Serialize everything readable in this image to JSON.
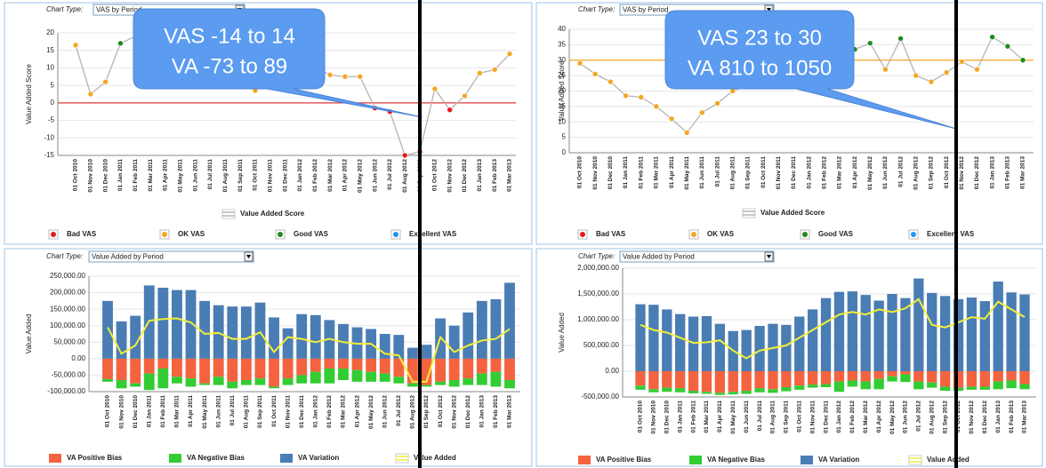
{
  "chart_data": [
    {
      "type": "line",
      "chart_type_label": "Chart Type:",
      "chart_type": "VAS by Period",
      "y_label": "Value Added Score",
      "annotation": [
        "VAS   -14 to 14",
        "VA -73 to 89"
      ],
      "categories": [
        "01 Oct 2010",
        "01 Nov 2010",
        "01 Dec 2010",
        "01 Jan 2011",
        "01 Feb 2011",
        "01 Mar 2011",
        "01 Apr 2011",
        "01 May 2011",
        "01 Jun 2011",
        "01 Jul 2011",
        "01 Aug 2011",
        "01 Sep 2011",
        "01 Oct 2011",
        "01 Nov 2011",
        "01 Dec 2011",
        "01 Jan 2012",
        "01 Feb 2012",
        "01 Mar 2012",
        "01 Apr 2012",
        "01 May 2012",
        "01 Jun 2012",
        "01 Jul 2012",
        "01 Aug 2012",
        "01 Sep 2012",
        "01 Oct 2012",
        "01 Nov 2012",
        "01 Dec 2012",
        "01 Jan 2013",
        "01 Feb 2013",
        "01 Mar 2013"
      ],
      "ylim": [
        -15,
        20
      ],
      "yticks": [
        -15,
        -10,
        -5,
        0,
        5,
        10,
        15,
        20
      ],
      "reference_line": {
        "value": 0,
        "color": "#e03a3a"
      },
      "series": [
        {
          "name": "Value Added Score",
          "type": "line",
          "color": "#b4b4b4",
          "values": [
            16.5,
            2.5,
            6,
            17,
            19,
            20,
            18,
            12.5,
            13,
            10,
            10,
            13,
            3.5,
            11,
            10,
            8,
            10,
            8,
            7.5,
            7.5,
            -1.5,
            -2.5,
            -15,
            -14,
            4,
            -2,
            2,
            8.5,
            9.5,
            14
          ]
        },
        {
          "name": "Bad VAS",
          "type": "points",
          "color": "#e41a1c",
          "values": [
            null,
            null,
            null,
            null,
            null,
            null,
            null,
            null,
            null,
            null,
            null,
            null,
            null,
            null,
            null,
            null,
            null,
            null,
            null,
            null,
            -1.5,
            -2.5,
            -15,
            -14,
            null,
            -2,
            null,
            null,
            null,
            null
          ]
        },
        {
          "name": "OK VAS",
          "type": "points",
          "color": "#f5a623",
          "values": [
            16.5,
            2.5,
            6,
            null,
            null,
            null,
            null,
            12.5,
            13,
            10,
            10,
            13,
            3.5,
            11,
            10,
            8,
            10,
            8,
            7.5,
            7.5,
            null,
            null,
            null,
            null,
            4,
            null,
            2,
            8.5,
            9.5,
            14
          ]
        },
        {
          "name": "Good VAS",
          "type": "points",
          "color": "#1e8c1e",
          "values": [
            null,
            null,
            null,
            17,
            19,
            20,
            18,
            null,
            null,
            null,
            null,
            null,
            null,
            null,
            null,
            null,
            null,
            null,
            null,
            null,
            null,
            null,
            null,
            null,
            null,
            null,
            null,
            null,
            null,
            null
          ]
        },
        {
          "name": "Excellent VAS",
          "type": "points",
          "color": "#2196f3",
          "values": [
            null,
            null,
            null,
            null,
            null,
            null,
            null,
            null,
            null,
            null,
            null,
            null,
            null,
            null,
            null,
            null,
            null,
            null,
            null,
            null,
            null,
            null,
            null,
            null,
            null,
            null,
            null,
            null,
            null,
            null
          ]
        }
      ]
    },
    {
      "type": "line",
      "chart_type_label": "Chart Type:",
      "chart_type": "VAS by Period",
      "y_label": "Value Added Score",
      "annotation": [
        "VAS   23 to 30",
        "VA 810 to 1050"
      ],
      "categories": [
        "01 Oct 2010",
        "01 Nov 2010",
        "01 Dec 2010",
        "01 Jan 2011",
        "01 Feb 2011",
        "01 Mar 2011",
        "01 Apr 2011",
        "01 May 2011",
        "01 Jun 2011",
        "01 Jul 2011",
        "01 Aug 2011",
        "01 Sep 2011",
        "01 Oct 2011",
        "01 Nov 2011",
        "01 Dec 2011",
        "01 Jan 2012",
        "01 Feb 2012",
        "01 Mar 2012",
        "01 Apr 2012",
        "01 May 2012",
        "01 Jun 2012",
        "01 Jul 2012",
        "01 Aug 2012",
        "01 Sep 2012",
        "01 Oct 2012",
        "01 Nov 2012",
        "01 Dec 2012",
        "01 Jan 2013",
        "01 Feb 2013",
        "01 Mar 2013"
      ],
      "ylim": [
        0,
        40
      ],
      "yticks": [
        0,
        5,
        10,
        15,
        20,
        25,
        30,
        35,
        40
      ],
      "reference_line": {
        "value": 30,
        "color": "#f5a623"
      },
      "series": [
        {
          "name": "Value Added Score",
          "type": "line",
          "color": "#b4b4b4",
          "values": [
            29,
            25.5,
            23,
            18.5,
            18,
            15,
            11,
            6.5,
            13,
            16,
            20,
            22,
            24,
            26,
            28,
            29,
            29.5,
            31,
            33.5,
            35.5,
            27,
            37,
            25,
            23,
            26,
            29.5,
            27,
            37.5,
            34.5,
            30
          ]
        },
        {
          "name": "Bad VAS",
          "type": "points",
          "color": "#e41a1c",
          "values": [
            null,
            null,
            null,
            null,
            null,
            null,
            null,
            null,
            null,
            null,
            null,
            null,
            null,
            null,
            null,
            null,
            null,
            null,
            null,
            null,
            null,
            null,
            null,
            null,
            null,
            null,
            null,
            null,
            null,
            null
          ]
        },
        {
          "name": "OK VAS",
          "type": "points",
          "color": "#f5a623",
          "values": [
            29,
            25.5,
            23,
            18.5,
            18,
            15,
            11,
            6.5,
            13,
            16,
            20,
            22,
            24,
            26,
            28,
            29,
            29.5,
            null,
            null,
            null,
            27,
            null,
            25,
            23,
            26,
            29.5,
            27,
            null,
            null,
            null
          ]
        },
        {
          "name": "Good VAS",
          "type": "points",
          "color": "#1e8c1e",
          "values": [
            null,
            null,
            null,
            null,
            null,
            null,
            null,
            null,
            null,
            null,
            null,
            null,
            null,
            null,
            null,
            null,
            null,
            31,
            33.5,
            35.5,
            null,
            37,
            null,
            null,
            null,
            null,
            null,
            37.5,
            34.5,
            30
          ]
        },
        {
          "name": "Excellent VAS",
          "type": "points",
          "color": "#2196f3",
          "values": [
            null,
            null,
            null,
            null,
            null,
            null,
            null,
            null,
            null,
            null,
            null,
            null,
            null,
            null,
            null,
            null,
            null,
            null,
            null,
            null,
            null,
            null,
            null,
            null,
            null,
            null,
            null,
            null,
            null,
            null
          ]
        }
      ]
    },
    {
      "type": "bar",
      "chart_type_label": "Chart Type:",
      "chart_type": "Value Added by Period",
      "y_label": "Value Added",
      "categories": [
        "01 Oct 2010",
        "01 Nov 2010",
        "01 Dec 2010",
        "01 Jan 2011",
        "01 Feb 2011",
        "01 Mar 2011",
        "01 Apr 2011",
        "01 May 2011",
        "01 Jun 2011",
        "01 Jul 2011",
        "01 Aug 2011",
        "01 Sep 2011",
        "01 Oct 2011",
        "01 Nov 2011",
        "01 Dec 2011",
        "01 Jan 2012",
        "01 Feb 2012",
        "01 Mar 2012",
        "01 Apr 2012",
        "01 May 2012",
        "01 Jun 2012",
        "01 Jul 2012",
        "01 Aug 2012",
        "01 Sep 2012",
        "01 Oct 2012",
        "01 Nov 2012",
        "01 Dec 2012",
        "01 Jan 2013",
        "01 Feb 2013",
        "01 Mar 2013"
      ],
      "ylim": [
        -100000,
        250000
      ],
      "yticks": [
        {
          "value": -100000,
          "label": "-100,000.00"
        },
        {
          "value": -50000,
          "label": "-50,000.00"
        },
        {
          "value": 0,
          "label": "0.00"
        },
        {
          "value": 50000,
          "label": "50,000.00"
        },
        {
          "value": 100000,
          "label": "100,000.00"
        },
        {
          "value": 150000,
          "label": "150,000.00"
        },
        {
          "value": 200000,
          "label": "200,000.00"
        },
        {
          "value": 250000,
          "label": "250,000.00"
        }
      ],
      "series": [
        {
          "name": "VA Positive Bias",
          "type": "bar",
          "color": "#f4633f",
          "values": [
            -62000,
            -65000,
            -75000,
            -45000,
            -30000,
            -55000,
            -60000,
            -75000,
            -55000,
            -70000,
            -65000,
            -60000,
            -85000,
            -60000,
            -50000,
            -40000,
            -30000,
            -30000,
            -35000,
            -40000,
            -45000,
            -55000,
            -75000,
            -80000,
            -70000,
            -65000,
            -60000,
            -45000,
            -40000,
            -65000
          ]
        },
        {
          "name": "VA Negative Bias",
          "type": "bar",
          "color": "#33cc33",
          "values": [
            -8000,
            -25000,
            -10000,
            -50000,
            -60000,
            -20000,
            -25000,
            -5000,
            -25000,
            -20000,
            -15000,
            -20000,
            -5000,
            -20000,
            -25000,
            -35000,
            -45000,
            -35000,
            -35000,
            -30000,
            -25000,
            -20000,
            -10000,
            -5000,
            -10000,
            -20000,
            -20000,
            -35000,
            -45000,
            -25000
          ]
        },
        {
          "name": "VA Variation",
          "type": "bar",
          "color": "#4a7db4",
          "values": [
            175000,
            113000,
            130000,
            222000,
            215000,
            208000,
            208000,
            175000,
            162000,
            158000,
            158000,
            170000,
            125000,
            92000,
            135000,
            132000,
            117000,
            105000,
            95000,
            90000,
            75000,
            72000,
            33000,
            42000,
            122000,
            100000,
            140000,
            175000,
            180000,
            230000
          ]
        },
        {
          "name": "Value Added",
          "type": "line",
          "color": "#f2ee3a",
          "values": [
            95000,
            15000,
            40000,
            115000,
            120000,
            122000,
            110000,
            75000,
            78000,
            60000,
            60000,
            80000,
            20000,
            65000,
            60000,
            50000,
            60000,
            50000,
            45000,
            45000,
            15000,
            10000,
            -70000,
            -70000,
            65000,
            20000,
            40000,
            55000,
            60000,
            90000
          ]
        }
      ]
    },
    {
      "type": "bar",
      "chart_type_label": "Chart Type:",
      "chart_type": "Value Added by Period",
      "y_label": "Value Added",
      "categories": [
        "01 Oct 2010",
        "01 Nov 2010",
        "01 Dec 2010",
        "01 Jan 2011",
        "01 Feb 2011",
        "01 Mar 2011",
        "01 Apr 2011",
        "01 May 2011",
        "01 Jun 2011",
        "01 Jul 2011",
        "01 Aug 2011",
        "01 Sep 2011",
        "01 Oct 2011",
        "01 Nov 2011",
        "01 Dec 2011",
        "01 Jan 2012",
        "01 Feb 2012",
        "01 Mar 2012",
        "01 Apr 2012",
        "01 May 2012",
        "01 Jun 2012",
        "01 Jul 2012",
        "01 Aug 2012",
        "01 Sep 2012",
        "01 Oct 2012",
        "01 Nov 2012",
        "01 Dec 2012",
        "01 Jan 2013",
        "01 Feb 2013",
        "01 Mar 2013"
      ],
      "ylim": [
        -500000,
        2000000
      ],
      "yticks": [
        {
          "value": -500000,
          "label": "-500,000.00"
        },
        {
          "value": 0,
          "label": "0.00"
        },
        {
          "value": 500000,
          "label": "500,000.00"
        },
        {
          "value": 1000000,
          "label": "1,000,000.00"
        },
        {
          "value": 1500000,
          "label": "1,500,000.00"
        },
        {
          "value": 2000000,
          "label": "2,000,000.00"
        }
      ],
      "series": [
        {
          "name": "VA Positive Bias",
          "type": "bar",
          "color": "#f4633f",
          "values": [
            -280000,
            -350000,
            -320000,
            -330000,
            -380000,
            -400000,
            -420000,
            -400000,
            -380000,
            -330000,
            -350000,
            -310000,
            -280000,
            -260000,
            -250000,
            -200000,
            -180000,
            -200000,
            -150000,
            -100000,
            -60000,
            -200000,
            -220000,
            -300000,
            -320000,
            -300000,
            -300000,
            -200000,
            -180000,
            -250000
          ]
        },
        {
          "name": "VA Negative Bias",
          "type": "bar",
          "color": "#33cc33",
          "values": [
            -80000,
            -60000,
            -80000,
            -80000,
            -50000,
            -40000,
            -40000,
            -50000,
            -60000,
            -80000,
            -70000,
            -80000,
            -80000,
            -60000,
            -60000,
            -200000,
            -120000,
            -150000,
            -200000,
            -100000,
            -150000,
            -150000,
            -100000,
            -80000,
            -60000,
            -60000,
            -60000,
            -150000,
            -150000,
            -100000
          ]
        },
        {
          "name": "VA Variation",
          "type": "bar",
          "color": "#4a7db4",
          "values": [
            1300000,
            1290000,
            1200000,
            1110000,
            1060000,
            1070000,
            920000,
            780000,
            800000,
            880000,
            920000,
            900000,
            1060000,
            1200000,
            1420000,
            1540000,
            1550000,
            1480000,
            1370000,
            1500000,
            1420000,
            1800000,
            1520000,
            1460000,
            1400000,
            1430000,
            1360000,
            1740000,
            1530000,
            1490000
          ]
        },
        {
          "name": "Value Added",
          "type": "line",
          "color": "#f2ee3a",
          "values": [
            900000,
            800000,
            750000,
            650000,
            550000,
            560000,
            600000,
            400000,
            250000,
            400000,
            450000,
            500000,
            650000,
            800000,
            950000,
            1100000,
            1150000,
            1100000,
            1200000,
            1150000,
            1220000,
            1400000,
            900000,
            850000,
            950000,
            1050000,
            1020000,
            1350000,
            1200000,
            1050000
          ]
        }
      ]
    }
  ]
}
